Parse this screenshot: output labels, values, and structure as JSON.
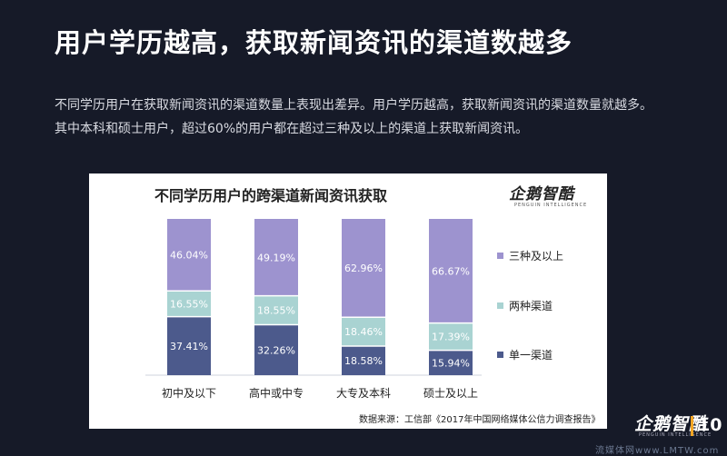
{
  "title": "用户学历越高，获取新闻资讯的渠道数越多",
  "intro": "不同学历用户在获取新闻资讯的渠道数量上表现出差异。用户学历越高，获取新闻资讯的渠道数量就越多。其中本科和硕士用户，超过60%的用户都在超过三种及以上的渠道上获取新闻资讯。",
  "logo": {
    "main": "企鹅智酷",
    "sub": "PENGUIN INTELLIGENCE"
  },
  "source": "数据来源：工信部《2017年中国网络媒体公信力调查报告》",
  "footer": {
    "logo": "企鹅智酷",
    "logo_sub": "PENGUIN INTELLIGENCE",
    "page_number": "10"
  },
  "watermark": "流媒体网www.LMTW.com",
  "colors": {
    "background": "#161a28",
    "accent": "#f5a623"
  },
  "chart_data": {
    "type": "bar",
    "stacked": true,
    "title": "不同学历用户的跨渠道新闻资讯获取",
    "categories": [
      "初中及以下",
      "高中或中专",
      "大专及本科",
      "硕士及以上"
    ],
    "series": [
      {
        "name": "单一渠道",
        "values": [
          37.41,
          32.26,
          18.58,
          15.94
        ],
        "labels": [
          "37.41%",
          "32.26%",
          "18.58%",
          "15.94%"
        ],
        "color": "#4c5a8c"
      },
      {
        "name": "两种渠道",
        "values": [
          16.55,
          18.55,
          18.46,
          17.39
        ],
        "labels": [
          "16.55%",
          "18.55%",
          "18.46%",
          "17.39%"
        ],
        "color": "#a9d3d2"
      },
      {
        "name": "三种及以上",
        "values": [
          46.04,
          49.19,
          62.96,
          66.67
        ],
        "labels": [
          "46.04%",
          "49.19%",
          "62.96%",
          "66.67%"
        ],
        "color": "#9d93cf"
      }
    ],
    "legend_order": [
      "三种及以上",
      "两种渠道",
      "单一渠道"
    ],
    "legend_position": "right",
    "ylim": [
      0,
      100
    ],
    "grid": false
  }
}
